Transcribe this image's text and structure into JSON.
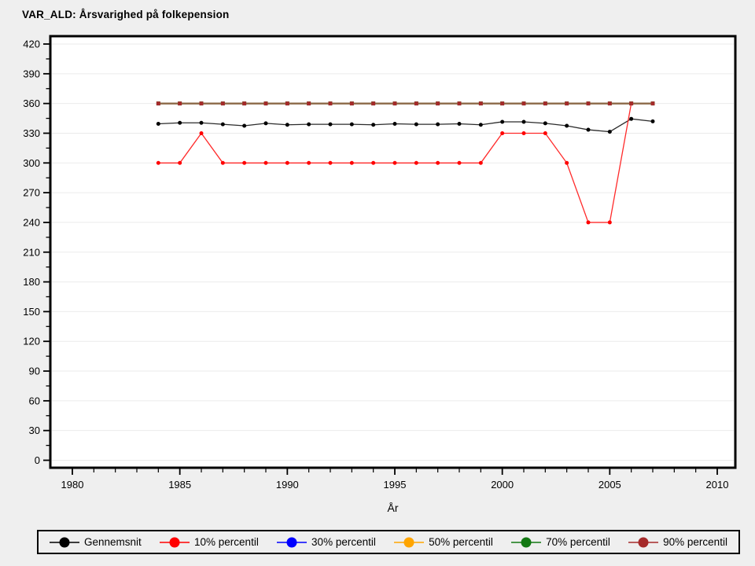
{
  "title": "VAR_ALD: Årsvarighed på folkepension",
  "colors": {
    "background": "#efefef",
    "plot_background": "#ffffff",
    "frame": "#000000",
    "gridline": "#ebebeb",
    "tick_label": "#000000"
  },
  "legend": {
    "position": "bottom",
    "items": [
      {
        "label": "Gennemsnit",
        "color": "#000000"
      },
      {
        "label": "10% percentil",
        "color": "#ff0000"
      },
      {
        "label": "30% percentil",
        "color": "#0000ff"
      },
      {
        "label": "50% percentil",
        "color": "#ffa500"
      },
      {
        "label": "70% percentil",
        "color": "#137813"
      },
      {
        "label": "90% percentil",
        "color": "#a52a2a"
      }
    ]
  },
  "chart_data": {
    "type": "line",
    "title": "VAR_ALD: Årsvarighed på folkepension",
    "xlabel": "År",
    "ylabel": "",
    "xlim": [
      1979,
      2010.8
    ],
    "ylim": [
      0,
      420
    ],
    "x_major_ticks": [
      1980,
      1985,
      1990,
      1995,
      2000,
      2005,
      2010
    ],
    "x_minor_step": 1,
    "y_major_ticks": [
      0,
      30,
      60,
      90,
      120,
      150,
      180,
      210,
      240,
      270,
      300,
      330,
      360,
      390,
      420
    ],
    "y_minor_step": 15,
    "grid": "horizontal-major",
    "legend_position": "bottom",
    "x": [
      1984,
      1985,
      1986,
      1987,
      1988,
      1989,
      1990,
      1991,
      1992,
      1993,
      1994,
      1995,
      1996,
      1997,
      1998,
      1999,
      2000,
      2001,
      2002,
      2003,
      2004,
      2005,
      2006,
      2007
    ],
    "series": [
      {
        "name": "Gennemsnit",
        "color": "#000000",
        "line_color": "#2b2b2b",
        "marker": "circle",
        "values": [
          339.5,
          340.5,
          340.5,
          339,
          337.5,
          340,
          338.5,
          339,
          339,
          339,
          338.5,
          339.5,
          339,
          339,
          339.5,
          338.5,
          341.5,
          341.5,
          340,
          337.5,
          333.5,
          331.5,
          344.5,
          342
        ]
      },
      {
        "name": "10% percentil",
        "color": "#ff0000",
        "line_color": "#ff2a2a",
        "marker": "circle",
        "values": [
          300,
          300,
          330,
          300,
          300,
          300,
          300,
          300,
          300,
          300,
          300,
          300,
          300,
          300,
          300,
          300,
          330,
          330,
          330,
          300,
          240,
          240,
          360,
          360
        ]
      },
      {
        "name": "30% percentil",
        "color": "#0000ff",
        "line_color": "#0000ff",
        "marker": "square",
        "values": [
          360,
          360,
          360,
          360,
          360,
          360,
          360,
          360,
          360,
          360,
          360,
          360,
          360,
          360,
          360,
          360,
          360,
          360,
          360,
          360,
          360,
          360,
          360,
          360
        ]
      },
      {
        "name": "50% percentil",
        "color": "#ffa500",
        "line_color": "#ffa500",
        "marker": "square",
        "values": [
          360,
          360,
          360,
          360,
          360,
          360,
          360,
          360,
          360,
          360,
          360,
          360,
          360,
          360,
          360,
          360,
          360,
          360,
          360,
          360,
          360,
          360,
          360,
          360
        ]
      },
      {
        "name": "70% percentil",
        "color": "#137813",
        "line_color": "#137813",
        "marker": "square",
        "values": [
          360,
          360,
          360,
          360,
          360,
          360,
          360,
          360,
          360,
          360,
          360,
          360,
          360,
          360,
          360,
          360,
          360,
          360,
          360,
          360,
          360,
          360,
          360,
          360
        ]
      },
      {
        "name": "90% percentil",
        "color": "#a52a2a",
        "line_color": "#8b6a47",
        "marker": "square",
        "values": [
          360,
          360,
          360,
          360,
          360,
          360,
          360,
          360,
          360,
          360,
          360,
          360,
          360,
          360,
          360,
          360,
          360,
          360,
          360,
          360,
          360,
          360,
          360,
          360
        ]
      }
    ]
  }
}
